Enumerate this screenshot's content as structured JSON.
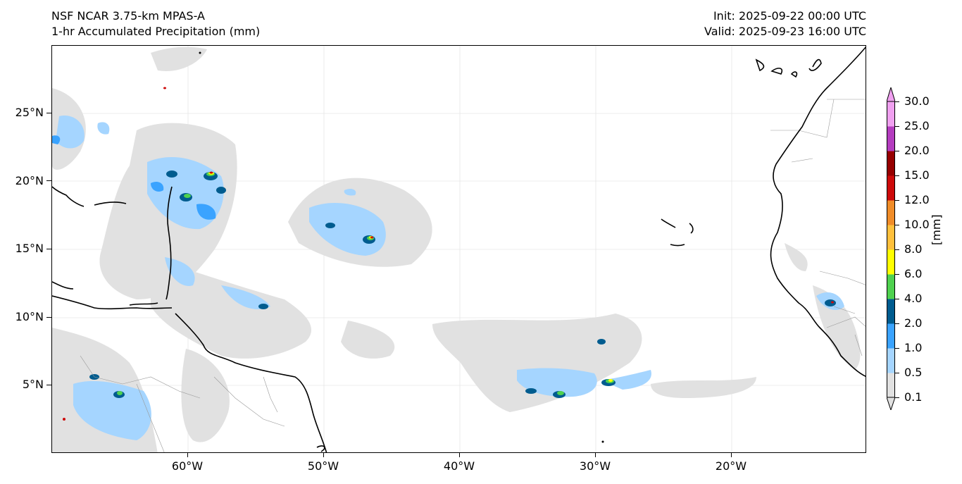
{
  "titles": {
    "left_line1": "NSF NCAR 3.75-km MPAS-A",
    "left_line2": "1-hr Accumulated Precipitation (mm)",
    "right_line1": "Init: 2025-09-22 00:00 UTC",
    "right_line2": "Valid: 2025-09-23 16:00 UTC"
  },
  "axes": {
    "lat_labels": [
      "25°N",
      "20°N",
      "15°N",
      "10°N",
      "5°N"
    ],
    "lon_labels": [
      "60°W",
      "50°W",
      "40°W",
      "30°W",
      "20°W"
    ]
  },
  "colorbar": {
    "units": "[mm]",
    "levels": [
      "0.1",
      "0.5",
      "1.0",
      "2.0",
      "4.0",
      "6.0",
      "8.0",
      "10.0",
      "12.0",
      "15.0",
      "20.0",
      "25.0",
      "30.0"
    ],
    "colors": [
      "#e1e1e1",
      "#a5d5ff",
      "#3aa3ff",
      "#005c8f",
      "#4fd14f",
      "#ffff00",
      "#ffc03c",
      "#f08c28",
      "#cd0a0a",
      "#960000",
      "#b43cbf",
      "#f0a0f0"
    ]
  }
}
